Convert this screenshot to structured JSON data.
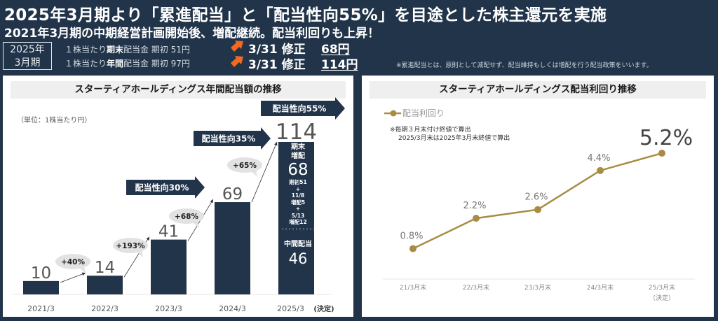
{
  "header": {
    "title": "2025年3月期より「累進配当」と「配当性向55%」を目途とした株主還元を実施",
    "subtitle": "2021年3月期の中期経営計画開始後、増配継続。配当利回りも上昇！",
    "fiscal_label_line1": "2025年",
    "fiscal_label_line2": "3月期",
    "rows": [
      {
        "prefix": "１株当たり",
        "bold": "期末",
        "suffix": "配当金 期初 51円",
        "revision": "3/31 修正",
        "value": "68円"
      },
      {
        "prefix": "１株当たり",
        "bold": "年間",
        "suffix": "配当金 期初 97円",
        "revision": "3/31 修正",
        "value": "114円"
      }
    ],
    "note": "※累進配当とは、原則として減配せず、配当維持もしくは増配を行う配当政策をいいます。",
    "colors": {
      "background": "#22344a",
      "accent_arrow": "#f26a22"
    }
  },
  "chart_data": [
    {
      "type": "bar",
      "title": "スターティアホールディングス年間配当額の推移",
      "unit_label": "（単位：1株当たり円）",
      "categories": [
        "2021/3",
        "2022/3",
        "2023/3",
        "2024/3",
        "2025/3"
      ],
      "category_suffix_last": "(決定)",
      "values": [
        10,
        14,
        41,
        69,
        114
      ],
      "value_labels": [
        "10",
        "14",
        "41",
        "69",
        "114"
      ],
      "growth_labels": [
        "+40%",
        "+193%",
        "+68%",
        "+65%"
      ],
      "payout_arrows": [
        "配当性向30%",
        "配当性向35%",
        "配当性向55%"
      ],
      "last_bar_breakdown": {
        "year_end_label_1": "期末",
        "year_end_label_2": "増配",
        "year_end_value": "68",
        "detail": [
          "期初51",
          "+",
          "11/8",
          "増配5",
          "+",
          "5/13",
          "増配12"
        ],
        "separator": "・・・・・・・・・・・",
        "interim_label": "中間配当",
        "interim_value": "46"
      },
      "ylim": [
        0,
        120
      ],
      "colors": {
        "bar": "#22344a",
        "bubble": "#e2e2e2",
        "value_text": "#555555"
      }
    },
    {
      "type": "line",
      "title": "スターティアホールディングス配当利回り推移",
      "legend": "配当利回り",
      "legend_position": "top-left",
      "notes": [
        "※毎期３月末付け終値で算出",
        "2025/3月末は2025年3月末終値で算出"
      ],
      "categories": [
        "21/3月末",
        "22/3月末",
        "23/3月末",
        "24/3月末",
        "25/3月末"
      ],
      "category_sub_last": "（決定）",
      "values": [
        0.8,
        2.2,
        2.6,
        4.4,
        5.2
      ],
      "value_labels": [
        "0.8%",
        "2.2%",
        "2.6%",
        "4.4%",
        "5.2%"
      ],
      "ylim": [
        -0.6,
        6.2
      ],
      "colors": {
        "line": "#a88c44",
        "label": "#777777",
        "highlight_label": "#444444"
      }
    }
  ]
}
